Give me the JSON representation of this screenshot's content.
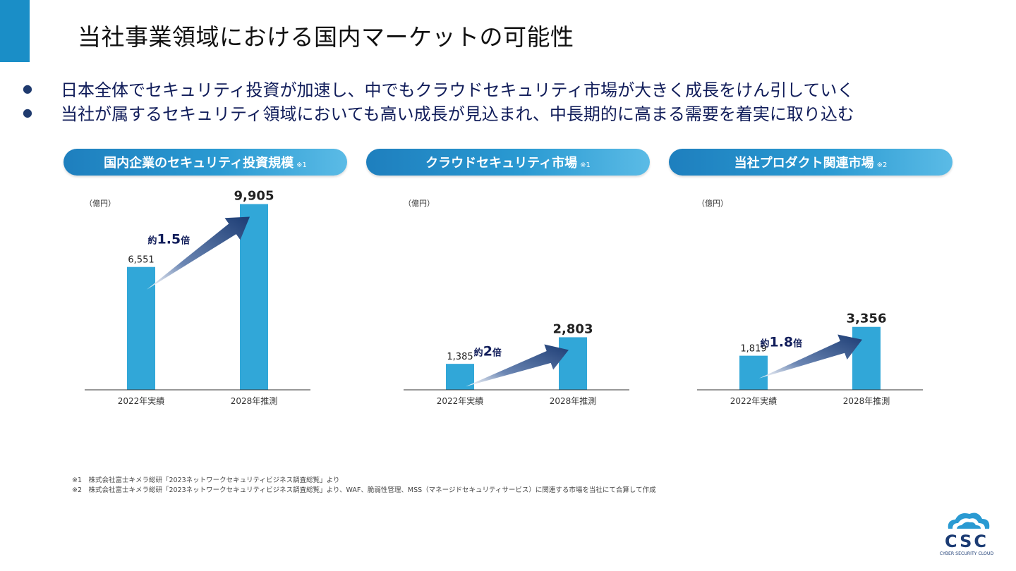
{
  "title": "当社事業領域における国内マーケットの可能性",
  "bullets": [
    "日本全体でセキュリティ投資が加速し、中でもクラウドセキュリティ市場が大きく成長をけん引していく",
    "当社が属するセキュリティ領域においても高い成長が見込まれ、中長期的に高まる需要を着実に取り込む"
  ],
  "bullet_marker": "●",
  "pills": [
    {
      "label": "国内企業のセキュリティ投資規模",
      "note": "※1"
    },
    {
      "label": "クラウドセキュリティ市場",
      "note": "※1"
    },
    {
      "label": "当社プロダクト関連市場",
      "note": "※2"
    }
  ],
  "colors": {
    "accent": "#1a8ec7",
    "bar": "#31a7d8",
    "arrow_dark": "#1c3c74",
    "text_navy": "#111d5a"
  },
  "chart_data": [
    {
      "type": "bar",
      "unit_label": "（億円）",
      "categories": [
        "2022年実績",
        "2028年推測"
      ],
      "values": [
        6551,
        9905
      ],
      "value_labels": [
        "6,551",
        "9,905"
      ],
      "growth_label_prefix": "約",
      "growth_label_value": "1.5",
      "growth_label_suffix": "倍"
    },
    {
      "type": "bar",
      "unit_label": "（億円）",
      "categories": [
        "2022年実績",
        "2028年推測"
      ],
      "values": [
        1385,
        2803
      ],
      "value_labels": [
        "1,385",
        "2,803"
      ],
      "growth_label_prefix": "約",
      "growth_label_value": "2",
      "growth_label_suffix": "倍"
    },
    {
      "type": "bar",
      "unit_label": "（億円）",
      "categories": [
        "2022年実績",
        "2028年推測"
      ],
      "values": [
        1819,
        3356
      ],
      "value_labels": [
        "1,819",
        "3,356"
      ],
      "growth_label_prefix": "約",
      "growth_label_value": "1.8",
      "growth_label_suffix": "倍"
    }
  ],
  "footnotes": [
    "※1　株式会社富士キメラ総研「2023ネットワークセキュリティビジネス調査総覧」より",
    "※2　株式会社富士キメラ総研「2023ネットワークセキュリティビジネス調査総覧」より、WAF、脆弱性管理、MSS（マネージドセキュリティサービス）に関連する市場を当社にて合算して作成"
  ],
  "logo": {
    "text": "CSC",
    "subtext": "CYBER SECURITY CLOUD",
    "icon": "cloud-icon"
  }
}
